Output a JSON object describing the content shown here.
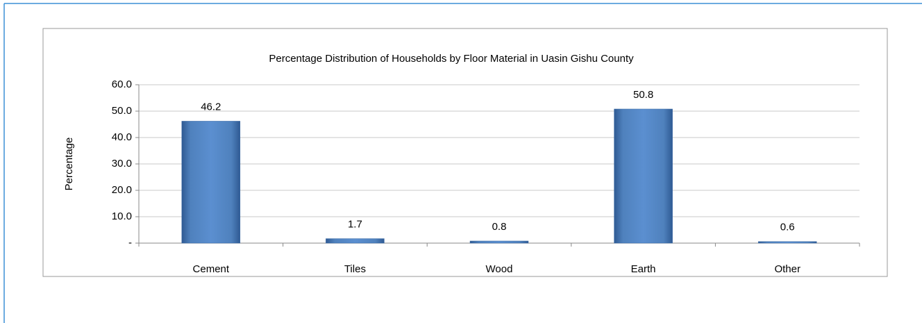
{
  "chart_data": {
    "type": "bar",
    "title": "Percentage Distribution of Households by Floor Material  in Uasin Gishu  County",
    "y_label": "Percentage",
    "categories": [
      "Cement",
      "Tiles",
      "Wood",
      "Earth",
      "Other"
    ],
    "values": [
      46.2,
      1.7,
      0.8,
      50.8,
      0.6
    ],
    "color": "#4f81bd",
    "ylim": [
      0,
      60
    ],
    "yticks": [
      {
        "value": 0,
        "label": "-"
      },
      {
        "value": 10,
        "label": "10.0"
      },
      {
        "value": 20,
        "label": "20.0"
      },
      {
        "value": 30,
        "label": "30.0"
      },
      {
        "value": 40,
        "label": "40.0"
      },
      {
        "value": 50,
        "label": "50.0"
      },
      {
        "value": 60,
        "label": "60.0"
      }
    ],
    "grid": true
  }
}
